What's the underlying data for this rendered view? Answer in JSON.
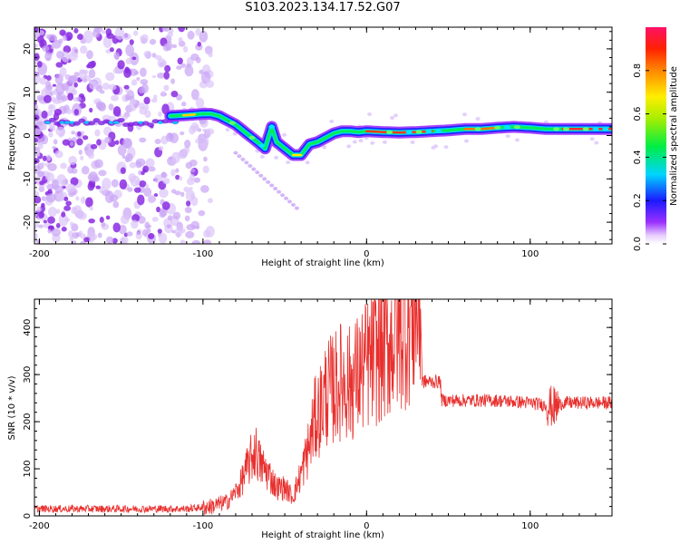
{
  "title": "S103.2023.134.17.52.G07",
  "chart_data": [
    {
      "type": "heatmap",
      "xlabel": "Height of straight line (km)",
      "ylabel": "Frequency (Hz)",
      "xlim": [
        -203,
        150
      ],
      "ylim": [
        -25,
        25
      ],
      "xticks": [
        -200,
        -100,
        0,
        100
      ],
      "yticks": [
        -20,
        -10,
        0,
        10,
        20
      ],
      "colorbar": {
        "label": "Normalized spectral amplitude",
        "range": [
          0,
          1
        ],
        "ticks": [
          0.0,
          0.2,
          0.4,
          0.6,
          0.8
        ]
      },
      "ridge": {
        "x": [
          -120,
          -110,
          -100,
          -95,
          -90,
          -85,
          -80,
          -75,
          -70,
          -65,
          -62,
          -58,
          -55,
          -50,
          -45,
          -40,
          -35,
          -30,
          -25,
          -20,
          -15,
          -10,
          -5,
          0,
          10,
          20,
          30,
          40,
          50,
          60,
          70,
          80,
          90,
          100,
          110,
          120,
          130,
          140,
          150
        ],
        "y": [
          4.5,
          4.7,
          5.0,
          5.0,
          4.5,
          3.5,
          2.5,
          1.0,
          -0.5,
          -2.0,
          -3.0,
          2.0,
          -1.5,
          -3.0,
          -4.5,
          -4.5,
          -2.0,
          -1.5,
          -0.5,
          0.5,
          1.0,
          1.0,
          0.8,
          1.0,
          0.8,
          0.7,
          0.8,
          1.0,
          1.2,
          1.5,
          1.5,
          1.8,
          2.0,
          1.8,
          1.5,
          1.5,
          1.5,
          1.5,
          1.5
        ]
      },
      "noise_region_x": [
        -203,
        -95
      ]
    },
    {
      "type": "line",
      "xlabel": "Height of straight line (km)",
      "ylabel": "SNR (10 * v/v)",
      "xlim": [
        -203,
        150
      ],
      "ylim": [
        0,
        460
      ],
      "xticks": [
        -200,
        -100,
        0,
        100
      ],
      "yticks": [
        0,
        100,
        200,
        300,
        400
      ],
      "color": "#e8302e",
      "trend": {
        "x": [
          -203,
          -110,
          -95,
          -85,
          -78,
          -72,
          -68,
          -65,
          -60,
          -55,
          -50,
          -45,
          -40,
          -35,
          -32,
          -28,
          -25,
          -20,
          -15,
          -10,
          -5,
          0,
          5,
          10,
          15,
          20,
          25,
          30,
          33,
          34,
          40,
          45,
          46,
          60,
          80,
          100,
          110,
          115,
          120,
          140,
          150
        ],
        "y": [
          15,
          15,
          20,
          30,
          60,
          110,
          140,
          110,
          90,
          60,
          60,
          40,
          90,
          150,
          200,
          230,
          260,
          270,
          290,
          280,
          300,
          320,
          340,
          350,
          370,
          390,
          410,
          430,
          440,
          285,
          285,
          285,
          245,
          245,
          245,
          240,
          235,
          230,
          240,
          240,
          240
        ]
      }
    }
  ]
}
